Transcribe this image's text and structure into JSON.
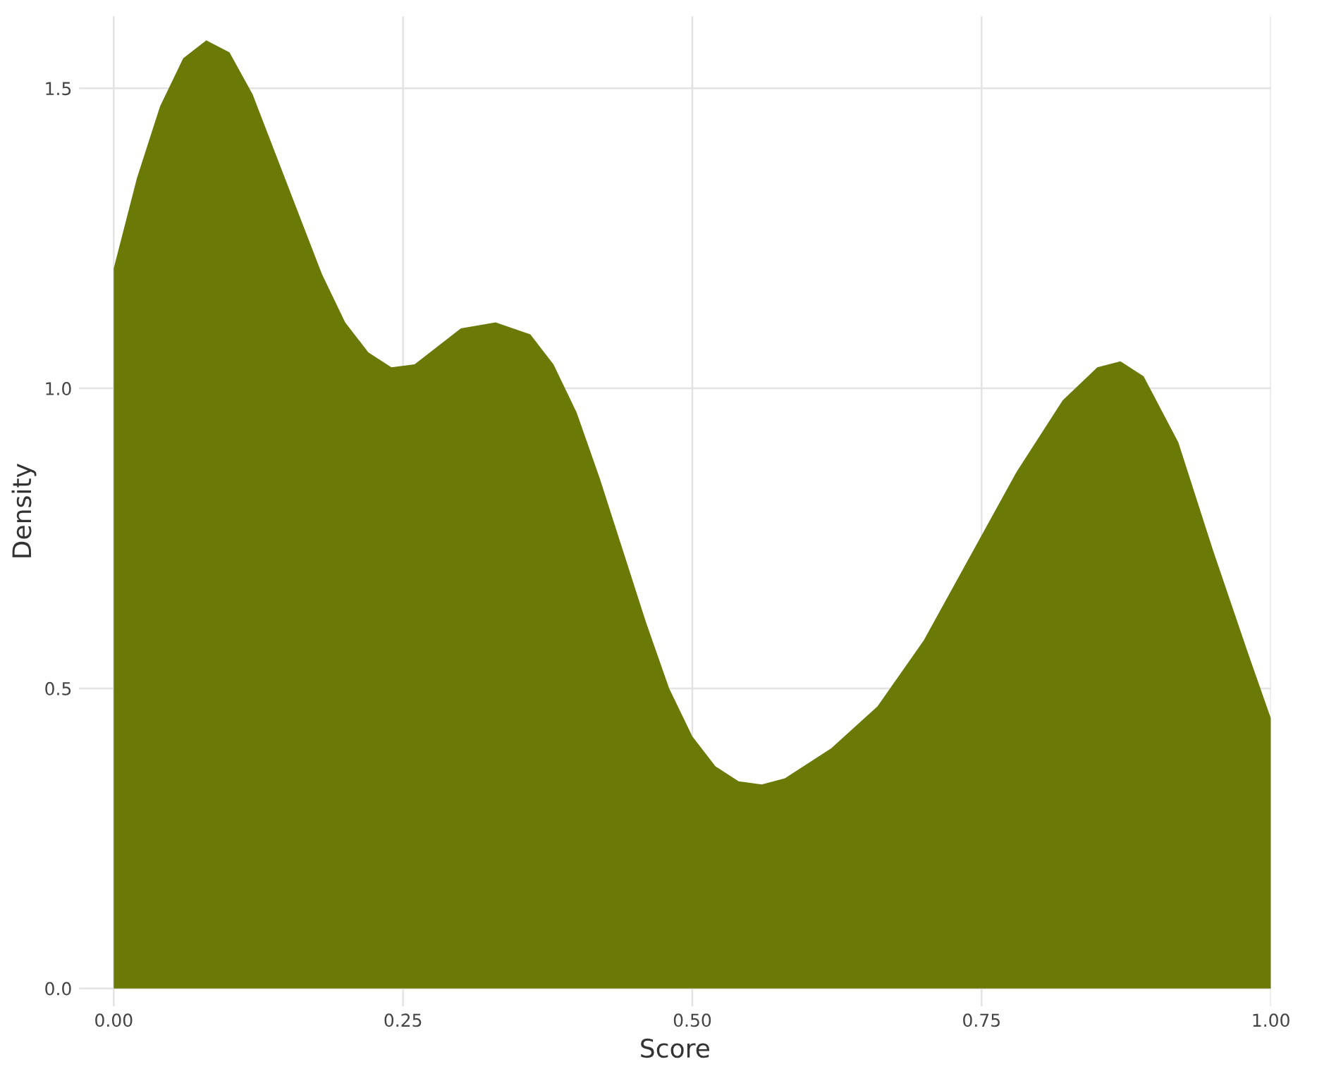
{
  "chart_data": {
    "type": "area",
    "xlabel": "Score",
    "ylabel": "Density",
    "x": [
      0,
      0.02,
      0.04,
      0.06,
      0.08,
      0.1,
      0.12,
      0.14,
      0.16,
      0.18,
      0.2,
      0.22,
      0.24,
      0.26,
      0.28,
      0.3,
      0.33,
      0.36,
      0.38,
      0.4,
      0.42,
      0.44,
      0.46,
      0.48,
      0.5,
      0.52,
      0.54,
      0.56,
      0.58,
      0.62,
      0.66,
      0.7,
      0.74,
      0.78,
      0.82,
      0.85,
      0.87,
      0.89,
      0.92,
      0.95,
      0.98,
      1.0
    ],
    "series": [
      {
        "color": "#6b7a06",
        "values": [
          1.2,
          1.35,
          1.47,
          1.55,
          1.58,
          1.56,
          1.49,
          1.39,
          1.29,
          1.19,
          1.11,
          1.06,
          1.035,
          1.04,
          1.07,
          1.1,
          1.11,
          1.09,
          1.04,
          0.96,
          0.85,
          0.73,
          0.61,
          0.5,
          0.42,
          0.37,
          0.345,
          0.34,
          0.35,
          0.4,
          0.47,
          0.58,
          0.72,
          0.86,
          0.98,
          1.035,
          1.045,
          1.02,
          0.91,
          0.73,
          0.56,
          0.45
        ]
      }
    ],
    "xlim": [
      -0.03,
      1.0
    ],
    "ylim": [
      -0.03,
      1.62
    ],
    "xticks": [
      {
        "value": 0,
        "label": "0.00"
      },
      {
        "value": 0.25,
        "label": "0.25"
      },
      {
        "value": 0.5,
        "label": "0.50"
      },
      {
        "value": 0.75,
        "label": "0.75"
      },
      {
        "value": 1.0,
        "label": "1.00"
      }
    ],
    "yticks": [
      {
        "value": 0,
        "label": "0.0"
      },
      {
        "value": 0.5,
        "label": "0.5"
      },
      {
        "value": 1.0,
        "label": "1.0"
      },
      {
        "value": 1.5,
        "label": "1.5"
      }
    ],
    "grid": true
  }
}
